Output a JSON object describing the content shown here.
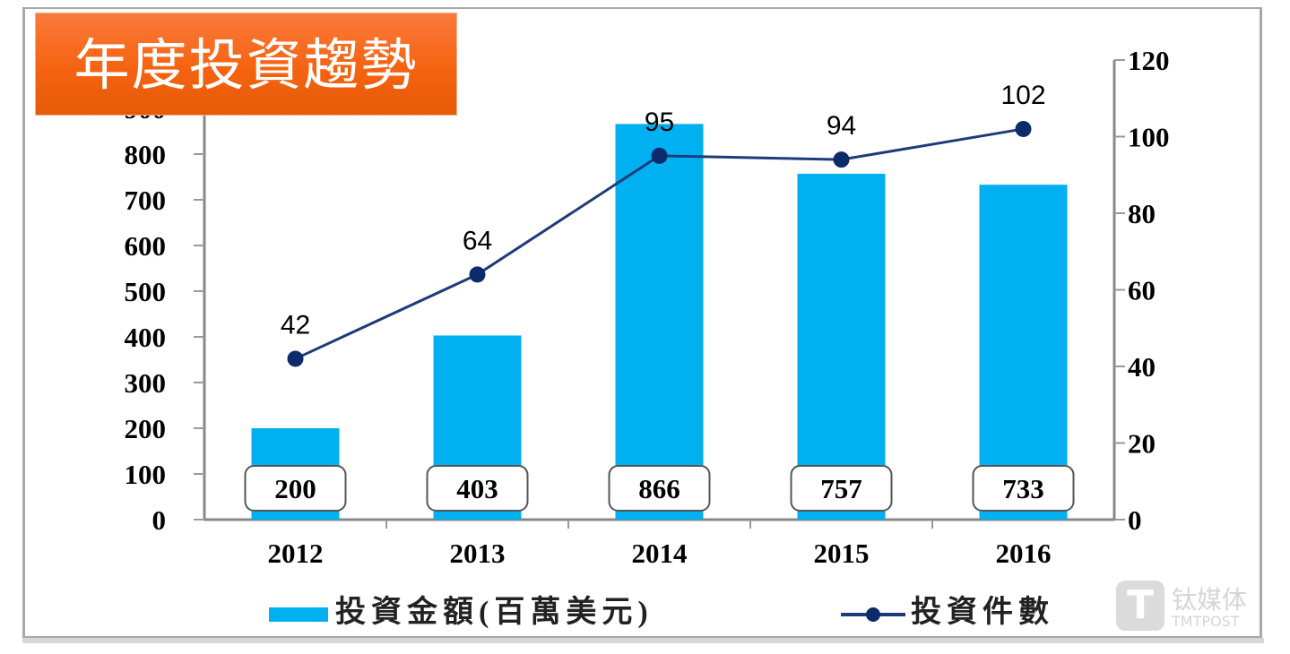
{
  "chart_data": {
    "type": "bar+line",
    "title": "年度投資趨勢",
    "categories": [
      "2012",
      "2013",
      "2014",
      "2015",
      "2016"
    ],
    "series": [
      {
        "name": "投資金額(百萬美元)",
        "type": "bar",
        "axis": "left",
        "color": "#00b0f0",
        "values": [
          200,
          403,
          866,
          757,
          733
        ]
      },
      {
        "name": "投資件數",
        "type": "line",
        "axis": "right",
        "color": "#1f3a7a",
        "values": [
          42,
          64,
          95,
          94,
          102
        ]
      }
    ],
    "left_axis": {
      "ylim": [
        0,
        900
      ],
      "ticks": [
        "0",
        "100",
        "200",
        "300",
        "400",
        "500",
        "600",
        "700",
        "800",
        "900"
      ]
    },
    "right_axis": {
      "ylim": [
        0,
        120
      ],
      "ticks": [
        "0",
        "20",
        "40",
        "60",
        "80",
        "100",
        "120"
      ]
    },
    "grid": false,
    "legend": "bottom"
  },
  "watermark": {
    "cn": "钛媒体",
    "en": "TMTPOST"
  }
}
